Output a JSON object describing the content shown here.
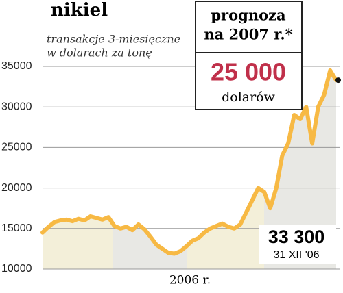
{
  "chart_data": {
    "type": "line",
    "title": "nikiel",
    "subtitle": [
      "transakcje 3-miesięczne",
      "w dolarach za tonę"
    ],
    "xlabel": "2006 r.",
    "values": [
      14500,
      15200,
      15800,
      16000,
      16100,
      15900,
      16200,
      16000,
      16500,
      16300,
      16100,
      16400,
      15300,
      15000,
      15200,
      14800,
      15500,
      14900,
      14000,
      13000,
      12500,
      12000,
      11900,
      12200,
      12800,
      13500,
      13800,
      14500,
      15000,
      15300,
      15600,
      15200,
      15000,
      15500,
      17000,
      18500,
      20000,
      19500,
      17500,
      20000,
      24000,
      25500,
      29000,
      28500,
      30000,
      25500,
      30000,
      31500,
      34500,
      33300
    ],
    "color": "#f7b944",
    "ylim": [
      10000,
      35000
    ],
    "yticks": [
      10000,
      15000,
      20000,
      25000,
      30000,
      35000
    ],
    "grid": true,
    "forecast": {
      "title": [
        "prognoza",
        "na 2007 r.*"
      ],
      "value": "25 000",
      "unit": "dolarów"
    },
    "end_label": {
      "value": "33 300",
      "date": "31 XII '06"
    }
  }
}
